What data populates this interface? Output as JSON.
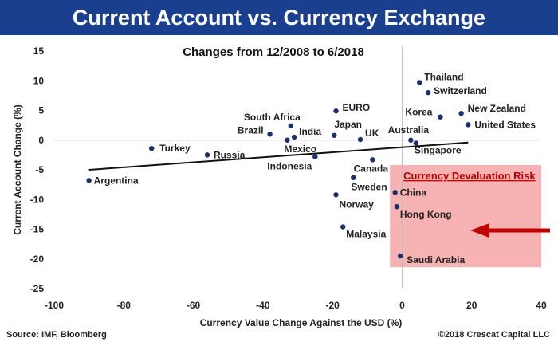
{
  "banner_title": "Current Account vs. Currency Exchange",
  "footer": {
    "source": "Source: IMF, Bloomberg",
    "copyright": "©2018 Crescat Capital LLC"
  },
  "colors": {
    "banner": "#1b3f8f",
    "points": "#1b2f6e",
    "risk_zone": "#f7b3b3",
    "risk_text": "#c00000",
    "arrow": "#c00000"
  },
  "chart_data": {
    "type": "scatter",
    "title": "Changes from 12/2008 to 6/2018",
    "xlabel": "Currency Value Change Against the USD (%)",
    "ylabel": "Current Account Change (%)",
    "xlim": [
      -100,
      40
    ],
    "ylim": [
      -25,
      15
    ],
    "x_ticks": [
      -100,
      -80,
      -60,
      -40,
      -20,
      0,
      20,
      40
    ],
    "y_ticks": [
      15,
      10,
      5,
      0,
      -5,
      -10,
      -15,
      -20,
      -25
    ],
    "grid": false,
    "points": [
      {
        "label": "Argentina",
        "x": -90,
        "y": -6.8
      },
      {
        "label": "Turkey",
        "x": -72,
        "y": -1.4
      },
      {
        "label": "Russia",
        "x": -56,
        "y": -2.5
      },
      {
        "label": "Brazil",
        "x": -38,
        "y": 1.0
      },
      {
        "label": "South Africa",
        "x": -32,
        "y": 2.4
      },
      {
        "label": "India",
        "x": -31,
        "y": 0.5
      },
      {
        "label": "Mexico",
        "x": -33,
        "y": 0.0
      },
      {
        "label": "Indonesia",
        "x": -25,
        "y": -2.8
      },
      {
        "label": "EURO",
        "x": -19,
        "y": 4.9
      },
      {
        "label": "Japan",
        "x": -19.5,
        "y": 0.8
      },
      {
        "label": "UK",
        "x": -12,
        "y": 0.1
      },
      {
        "label": "Canada",
        "x": -8.5,
        "y": -3.3
      },
      {
        "label": "Sweden",
        "x": -14,
        "y": -6.3
      },
      {
        "label": "Norway",
        "x": -19,
        "y": -9.2
      },
      {
        "label": "Malaysia",
        "x": -17,
        "y": -14.6
      },
      {
        "label": "China",
        "x": -2,
        "y": -8.8
      },
      {
        "label": "Hong Kong",
        "x": -1.5,
        "y": -11.2
      },
      {
        "label": "Saudi Arabia",
        "x": -0.5,
        "y": -19.5
      },
      {
        "label": "Australia",
        "x": 2.5,
        "y": 0.0
      },
      {
        "label": "Singapore",
        "x": 4,
        "y": -0.5
      },
      {
        "label": "Thailand",
        "x": 5,
        "y": 9.7
      },
      {
        "label": "Switzerland",
        "x": 7.5,
        "y": 8.0
      },
      {
        "label": "Korea",
        "x": 11,
        "y": 3.9
      },
      {
        "label": "New Zealand",
        "x": 17,
        "y": 4.5
      },
      {
        "label": "United States",
        "x": 19,
        "y": 2.6
      }
    ],
    "trendline": {
      "x": [
        -90,
        19
      ],
      "y": [
        -5.0,
        -0.4
      ]
    },
    "annotation": {
      "label": "Currency Devaluation Risk",
      "region_x": [
        -3.5,
        40
      ],
      "region_y": [
        -21.4,
        -4.2
      ]
    }
  }
}
